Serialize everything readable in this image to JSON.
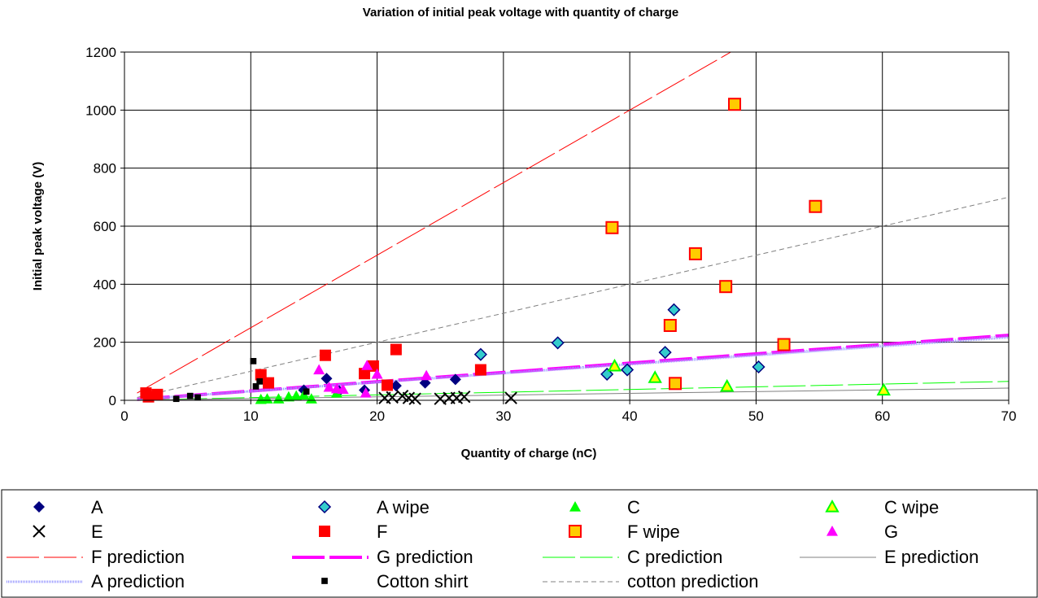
{
  "chart_data": {
    "type": "scatter",
    "title": "Variation of initial peak voltage with quantity of charge",
    "xlabel": "Quantity of charge (nC)",
    "ylabel": "Initial peak voltage (V)",
    "xlim": [
      0,
      70
    ],
    "ylim": [
      0,
      1200
    ],
    "x_ticks": [
      "0",
      "10",
      "20",
      "30",
      "40",
      "50",
      "60",
      "70"
    ],
    "y_ticks": [
      "0",
      "200",
      "400",
      "600",
      "800",
      "1000",
      "1200"
    ],
    "grid": true,
    "legend_position": "bottom",
    "series": [
      {
        "name": "A",
        "marker": "diamond",
        "color": "#000080",
        "points": [
          [
            14.2,
            35
          ],
          [
            16,
            75
          ],
          [
            17,
            32
          ],
          [
            19,
            35
          ],
          [
            21.5,
            50
          ],
          [
            23.8,
            60
          ],
          [
            26.2,
            72
          ]
        ]
      },
      {
        "name": "A wipe",
        "marker": "diamond-outline",
        "color": "#33CCCC",
        "points": [
          [
            28.2,
            158
          ],
          [
            34.3,
            198
          ],
          [
            38.2,
            90
          ],
          [
            39.8,
            105
          ],
          [
            42.8,
            165
          ],
          [
            43.5,
            312
          ],
          [
            50.2,
            115
          ]
        ]
      },
      {
        "name": "C",
        "marker": "triangle",
        "color": "#00FF00",
        "points": [
          [
            10.8,
            3
          ],
          [
            11.3,
            5
          ],
          [
            12.2,
            5
          ],
          [
            13,
            12
          ],
          [
            13.6,
            15
          ],
          [
            14.2,
            18
          ],
          [
            14.8,
            5
          ],
          [
            16.8,
            25
          ]
        ]
      },
      {
        "name": "C wipe",
        "marker": "triangle-outline",
        "color": "#FFFF00",
        "points": [
          [
            38.8,
            118
          ],
          [
            42,
            78
          ],
          [
            47.7,
            48
          ],
          [
            60.1,
            35
          ]
        ]
      },
      {
        "name": "E",
        "marker": "x",
        "color": "#000000",
        "points": [
          [
            20.6,
            8
          ],
          [
            21.2,
            10
          ],
          [
            22,
            15
          ],
          [
            22.5,
            8
          ],
          [
            23,
            5
          ],
          [
            25,
            5
          ],
          [
            25.7,
            8
          ],
          [
            26.3,
            8
          ],
          [
            26.9,
            12
          ],
          [
            30.6,
            8
          ]
        ]
      },
      {
        "name": "F",
        "marker": "square",
        "color": "#FF0000",
        "points": [
          [
            1.7,
            25
          ],
          [
            1.9,
            12
          ],
          [
            2.6,
            20
          ],
          [
            10.8,
            88
          ],
          [
            11.4,
            60
          ],
          [
            15.9,
            155
          ],
          [
            19,
            92
          ],
          [
            19.7,
            118
          ],
          [
            20.8,
            52
          ],
          [
            21.5,
            175
          ],
          [
            28.2,
            105
          ]
        ]
      },
      {
        "name": "F wipe",
        "marker": "square-outline",
        "color": "#FFCC00",
        "points": [
          [
            38.6,
            595
          ],
          [
            43.2,
            258
          ],
          [
            43.6,
            58
          ],
          [
            45.2,
            505
          ],
          [
            47.6,
            392
          ],
          [
            48.3,
            1020
          ],
          [
            52.2,
            192
          ],
          [
            54.7,
            668
          ]
        ]
      },
      {
        "name": "G",
        "marker": "triangle",
        "color": "#FF00FF",
        "points": [
          [
            15.4,
            105
          ],
          [
            16.2,
            45
          ],
          [
            16.8,
            40
          ],
          [
            17.3,
            38
          ],
          [
            19.2,
            120
          ],
          [
            19.1,
            25
          ],
          [
            20,
            90
          ],
          [
            23.9,
            85
          ]
        ]
      },
      {
        "name": "Cotton shirt",
        "marker": "small-square",
        "color": "#000000",
        "points": [
          [
            4.1,
            5
          ],
          [
            5.2,
            15
          ],
          [
            5.8,
            10
          ],
          [
            10.2,
            135
          ],
          [
            10.4,
            48
          ],
          [
            10.7,
            65
          ],
          [
            14.4,
            30
          ]
        ]
      }
    ],
    "trendlines": [
      {
        "name": "F prediction",
        "style": "long-dash",
        "color": "#FF0000",
        "slope": 25,
        "x_range": [
          1,
          48.8
        ]
      },
      {
        "name": "G prediction",
        "style": "thick-dash",
        "color": "#FF00FF",
        "slope": 3.2,
        "x_range": [
          1,
          70
        ]
      },
      {
        "name": "C prediction",
        "style": "long-dash",
        "color": "#00FF00",
        "slope": 0.93,
        "x_range": [
          1,
          70
        ]
      },
      {
        "name": "E prediction",
        "style": "solid",
        "color": "#808080",
        "slope": 0.6,
        "x_range": [
          1,
          70
        ]
      },
      {
        "name": "A prediction",
        "style": "dotted",
        "color": "#9999FF",
        "slope": 3.1,
        "x_range": [
          1,
          70
        ]
      },
      {
        "name": "cotton prediction",
        "style": "short-dash",
        "color": "#808080",
        "slope": 10,
        "x_range": [
          1,
          70
        ]
      }
    ]
  },
  "legend": {
    "items": [
      {
        "label": "A",
        "key": "A"
      },
      {
        "label": "A wipe",
        "key": "A wipe"
      },
      {
        "label": "C",
        "key": "C"
      },
      {
        "label": "C wipe",
        "key": "C wipe"
      },
      {
        "label": "E",
        "key": "E"
      },
      {
        "label": "F",
        "key": "F"
      },
      {
        "label": "F wipe",
        "key": "F wipe"
      },
      {
        "label": "G",
        "key": "G"
      },
      {
        "label": "F prediction",
        "key": "F prediction"
      },
      {
        "label": "G prediction",
        "key": "G prediction"
      },
      {
        "label": "C prediction",
        "key": "C prediction"
      },
      {
        "label": "E prediction",
        "key": "E prediction"
      },
      {
        "label": "A prediction",
        "key": "A prediction"
      },
      {
        "label": "Cotton shirt",
        "key": "Cotton shirt"
      },
      {
        "label": "cotton prediction",
        "key": "cotton prediction"
      }
    ]
  }
}
